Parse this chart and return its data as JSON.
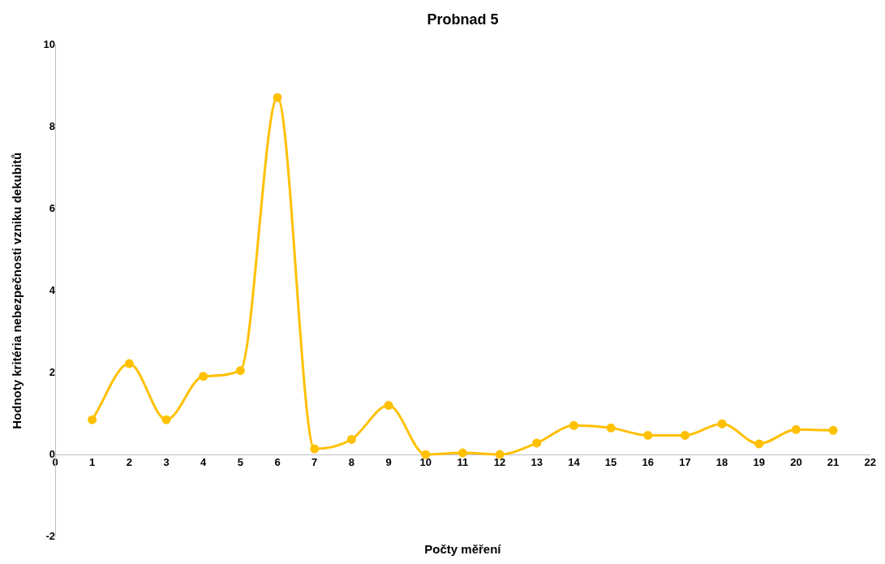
{
  "chart_data": {
    "type": "line",
    "title": "Probnad 5",
    "xlabel": "Počty měření",
    "ylabel": "Hodnoty kritéria nebezpečnosti vzniku dekubitů",
    "x": [
      1,
      2,
      3,
      4,
      5,
      6,
      7,
      8,
      9,
      10,
      11,
      12,
      13,
      14,
      15,
      16,
      17,
      18,
      19,
      20,
      21
    ],
    "series": [
      {
        "color": "#ffc000",
        "values": [
          0.85,
          2.22,
          0.85,
          1.91,
          2.05,
          8.72,
          0.14,
          0.37,
          1.2,
          0,
          0.04,
          0,
          0.28,
          0.71,
          0.65,
          0.47,
          0.47,
          0.75,
          0.26,
          0.61,
          0.59
        ]
      }
    ],
    "xlim": [
      0,
      22
    ],
    "xticks": [
      0,
      1,
      2,
      3,
      4,
      5,
      6,
      7,
      8,
      9,
      10,
      11,
      12,
      13,
      14,
      15,
      16,
      17,
      18,
      19,
      20,
      21,
      22
    ],
    "ylim": [
      -2,
      10
    ],
    "yticks": [
      -2,
      0,
      2,
      4,
      6,
      8,
      10
    ],
    "grid": false,
    "legend": false,
    "marker": "circle",
    "line_style": "solid"
  }
}
